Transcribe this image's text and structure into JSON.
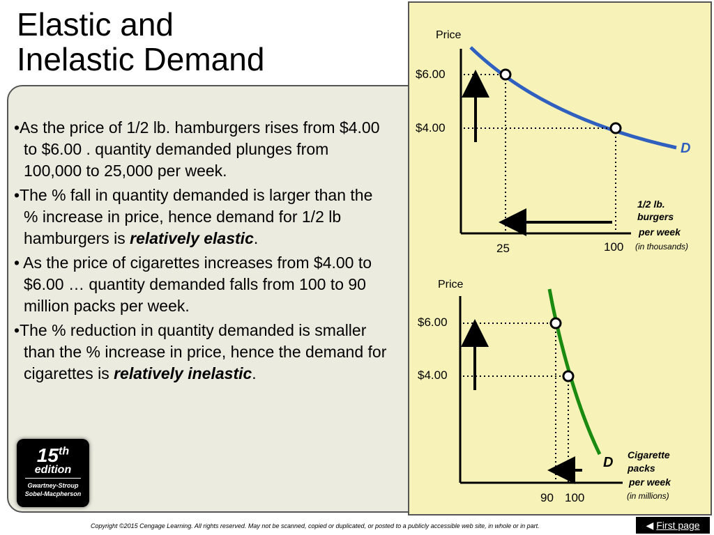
{
  "title": {
    "line1": "Elastic and",
    "line2": "Inelastic Demand"
  },
  "bullets": [
    {
      "text": "•As the price of 1/2 lb. hamburgers rises from $4.00 to $6.00 . quantity demanded plunges from 100,000 to 25,000 per week."
    },
    {
      "text": "•The % fall in quantity demanded is larger than the % increase in price, hence demand for 1/2 lb hamburgers is ",
      "emphasis": "relatively elastic",
      "after": "."
    },
    {
      "text": "• As the price of cigarettes increases from $4.00 to $6.00 … quantity demanded falls from 100 to 90 million packs per week."
    },
    {
      "text": "•The % reduction in quantity demanded is smaller than the % increase in price, hence the demand for cigarettes is ",
      "emphasis": "relatively inelastic",
      "after": "."
    }
  ],
  "badge": {
    "number": "15",
    "sup": "th",
    "edition": "edition",
    "author1": "Gwartney-Stroup",
    "author2": "Sobel-Macpherson"
  },
  "copyright": "Copyright ©2015 Cengage Learning. All rights reserved. May not be scanned, copied or duplicated, or posted to a publicly accessible web site, in whole or in part.",
  "nav": {
    "first_page": "First page",
    "icon": "arrow-left-icon"
  },
  "colors": {
    "curve_top": "#2f5fbf",
    "curve_bottom": "#1a8a10",
    "graph_bg": "#f7f2b8",
    "panel_bg": "#ebebdf"
  },
  "chart_data": [
    {
      "type": "line",
      "ylabel": "Price",
      "xlabel_line1": "1/2 lb.",
      "xlabel_line2": "burgers",
      "xlabel_line3": "per week",
      "xlabel_unit": "(in thousands)",
      "curve_label": "D",
      "points": [
        {
          "x": 25,
          "y": 6.0,
          "ylabel": "$6.00",
          "xlabel": "25"
        },
        {
          "x": 100,
          "y": 4.0,
          "ylabel": "$4.00",
          "xlabel": "100"
        }
      ]
    },
    {
      "type": "line",
      "ylabel": "Price",
      "xlabel_line1": "Cigarette",
      "xlabel_line2": "packs",
      "xlabel_line3": "per week",
      "xlabel_unit": "(in millions)",
      "curve_label": "D",
      "points": [
        {
          "x": 90,
          "y": 6.0,
          "ylabel": "$6.00",
          "xlabel": "90"
        },
        {
          "x": 100,
          "y": 4.0,
          "ylabel": "$4.00",
          "xlabel": "100"
        }
      ]
    }
  ]
}
